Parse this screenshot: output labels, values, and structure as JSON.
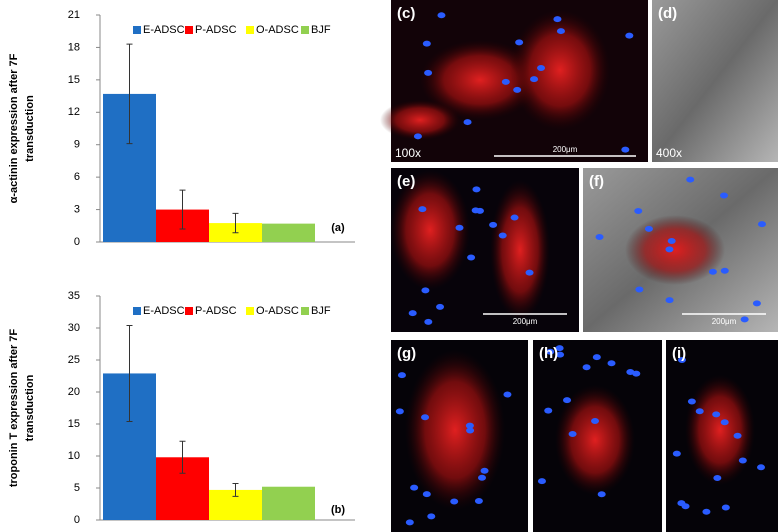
{
  "chart_data": [
    {
      "type": "bar",
      "ylabel": [
        "α-actinin expression after 7F",
        "transduction"
      ],
      "annotation": "(a)",
      "ylim": [
        0,
        21
      ],
      "yticks": [
        0,
        3,
        6,
        9,
        12,
        15,
        18,
        21
      ],
      "grid": false,
      "legend": "top-right",
      "series": [
        {
          "name": "E-ADSC",
          "color": "#1f6fc4",
          "values": [
            13.7
          ],
          "errors": [
            4.6
          ]
        },
        {
          "name": "P-ADSC",
          "color": "#ff0000",
          "values": [
            3.0
          ],
          "errors": [
            1.8
          ]
        },
        {
          "name": "O-ADSC",
          "color": "#ffff00",
          "values": [
            1.75
          ],
          "errors": [
            0.9
          ]
        },
        {
          "name": "BJF",
          "color": "#92d050",
          "values": [
            1.7
          ]
        }
      ]
    },
    {
      "type": "bar",
      "ylabel": [
        "troponin T expression after 7F",
        "transduction"
      ],
      "annotation": "(b)",
      "ylim": [
        0,
        35
      ],
      "yticks": [
        0,
        5,
        10,
        15,
        20,
        25,
        30,
        35
      ],
      "grid": false,
      "legend": "top-right",
      "series": [
        {
          "name": "E-ADSC",
          "color": "#1f6fc4",
          "values": [
            22.9
          ],
          "errors": [
            7.5
          ]
        },
        {
          "name": "P-ADSC",
          "color": "#ff0000",
          "values": [
            9.8
          ],
          "errors": [
            2.5
          ]
        },
        {
          "name": "O-ADSC",
          "color": "#ffff00",
          "values": [
            4.7
          ],
          "errors": [
            1.0
          ]
        },
        {
          "name": "BJF",
          "color": "#92d050",
          "values": [
            5.2
          ]
        }
      ]
    }
  ],
  "panels": [
    {
      "label": "(c)",
      "magnification": "100x",
      "scale_bar": "200μm"
    },
    {
      "label": "(d)",
      "magnification": "400x"
    },
    {
      "label": "(e)",
      "scale_bar": "200μm"
    },
    {
      "label": "(f)",
      "scale_bar": "200μm"
    },
    {
      "label": "(g)"
    },
    {
      "label": "(h)"
    },
    {
      "label": "(i)"
    }
  ]
}
